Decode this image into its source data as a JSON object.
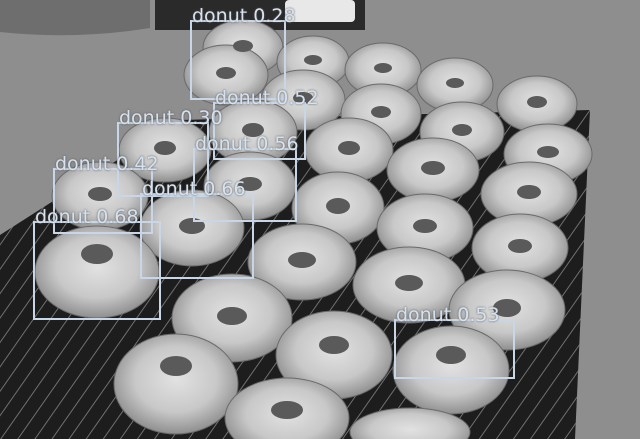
{
  "detections": [
    {
      "label": "donut",
      "score": "0.28"
    },
    {
      "label": "donut",
      "score": "0.52"
    },
    {
      "label": "donut",
      "score": "0.30"
    },
    {
      "label": "donut",
      "score": "0.56"
    },
    {
      "label": "donut",
      "score": "0.42"
    },
    {
      "label": "donut",
      "score": "0.66"
    },
    {
      "label": "donut",
      "score": "0.68"
    },
    {
      "label": "donut",
      "score": "0.53"
    }
  ],
  "colors": {
    "box": "#c9d6e6",
    "label_text": "#d6e2f0"
  }
}
